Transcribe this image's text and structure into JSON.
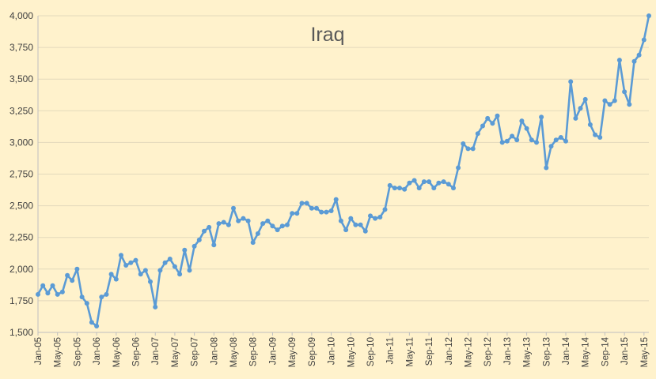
{
  "chart_data": {
    "type": "line",
    "title": "Iraq",
    "xlabel": "",
    "ylabel": "",
    "ylim": [
      1500,
      4000
    ],
    "yticks": [
      "1,500",
      "1,750",
      "2,000",
      "2,250",
      "2,500",
      "2,750",
      "3,000",
      "3,250",
      "3,500",
      "3,750",
      "4,000"
    ],
    "ytick_values": [
      1500,
      1750,
      2000,
      2250,
      2500,
      2750,
      3000,
      3250,
      3500,
      3750,
      4000
    ],
    "xtick_labels": [
      "Jan-05",
      "May-05",
      "Sep-05",
      "Jan-06",
      "May-06",
      "Sep-06",
      "Jan-07",
      "May-07",
      "Sep-07",
      "Jan-08",
      "May-08",
      "Sep-08",
      "Jan-09",
      "May-09",
      "Sep-09",
      "Jan-10",
      "May-10",
      "Sep-10",
      "Jan-11",
      "May-11",
      "Sep-11",
      "Jan-12",
      "May-12",
      "Sep-12",
      "Jan-13",
      "May-13",
      "Sep-13",
      "Jan-14",
      "May-14",
      "Sep-14",
      "Jan-15",
      "May-15"
    ],
    "grid": true,
    "legend": "none",
    "series_color": "#5B9BD5",
    "x_start": "Jan-05",
    "x_step_months": 1,
    "values": [
      1800,
      1870,
      1810,
      1870,
      1800,
      1820,
      1950,
      1910,
      2000,
      1780,
      1730,
      1580,
      1550,
      1780,
      1800,
      1960,
      1920,
      2110,
      2030,
      2050,
      2070,
      1960,
      1990,
      1900,
      1700,
      1990,
      2050,
      2080,
      2020,
      1960,
      2150,
      1990,
      2180,
      2230,
      2300,
      2330,
      2190,
      2360,
      2370,
      2350,
      2480,
      2380,
      2400,
      2380,
      2210,
      2280,
      2360,
      2380,
      2340,
      2310,
      2340,
      2350,
      2440,
      2440,
      2520,
      2520,
      2480,
      2480,
      2450,
      2450,
      2460,
      2550,
      2380,
      2310,
      2400,
      2350,
      2350,
      2300,
      2420,
      2400,
      2410,
      2470,
      2660,
      2640,
      2640,
      2630,
      2680,
      2700,
      2640,
      2690,
      2690,
      2640,
      2680,
      2690,
      2670,
      2640,
      2800,
      2990,
      2950,
      2950,
      3070,
      3130,
      3190,
      3150,
      3210,
      3000,
      3010,
      3050,
      3020,
      3170,
      3110,
      3020,
      3000,
      3200,
      2800,
      2970,
      3020,
      3040,
      3010,
      3480,
      3190,
      3270,
      3340,
      3140,
      3060,
      3040,
      3330,
      3300,
      3330,
      3650,
      3400,
      3300,
      3640,
      3690,
      3810,
      4000
    ]
  }
}
